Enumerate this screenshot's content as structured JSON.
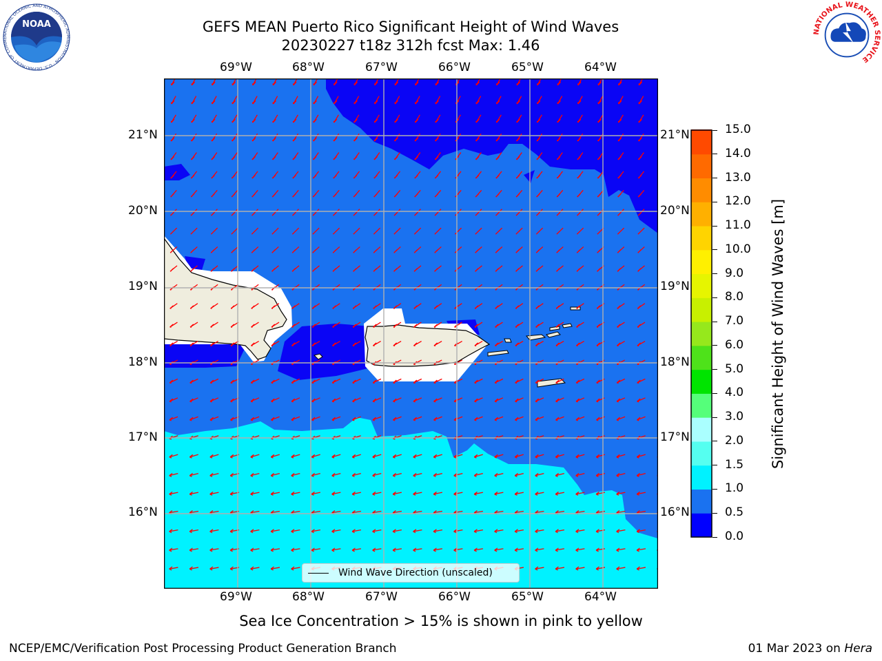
{
  "title": {
    "line1": "GEFS MEAN Puerto Rico Significant Height of Wind Waves",
    "line2": "20230227 t18z 312h fcst   Max: 1.46"
  },
  "map": {
    "lon_ticks": [
      "69°W",
      "68°W",
      "67°W",
      "66°W",
      "65°W",
      "64°W"
    ],
    "lat_ticks": [
      "21°N",
      "20°N",
      "19°N",
      "18°N",
      "17°N",
      "16°N"
    ],
    "legend_label": "Wind Wave Direction (unscaled)",
    "colors": {
      "land": "#efedde",
      "ocean_0_0.5": "#0a05f5",
      "ocean_0.5_1.0": "#1a72f0",
      "ocean_1.0_1.5": "#00f2ff",
      "arrow": "#ff0000"
    }
  },
  "colorbar": {
    "label": "Significant Height of Wind Waves [m]",
    "ticks": [
      "15.0",
      "14.0",
      "13.0",
      "12.0",
      "11.0",
      "10.0",
      "9.0",
      "8.0",
      "7.0",
      "6.0",
      "5.0",
      "4.0",
      "3.0",
      "2.0",
      "1.5",
      "1.0",
      "0.5",
      "0.0"
    ],
    "colors": [
      "#0000ff",
      "#1a72f0",
      "#00f2ff",
      "#55fff0",
      "#aaffff",
      "#55ff7a",
      "#00e400",
      "#4ee21a",
      "#96e81c",
      "#c8f000",
      "#e6f500",
      "#fff000",
      "#ffd400",
      "#ffb000",
      "#ff8c00",
      "#ff6a00",
      "#ff4a00",
      "#ff1e00"
    ]
  },
  "note": "Sea Ice Concentration > 15% is shown in pink to yellow",
  "footer": {
    "left": "NCEP/EMC/Verification Post Processing Product Generation Branch",
    "right_date": "01 Mar 2023 on ",
    "right_host": "Hera"
  },
  "logos": {
    "left": {
      "text": "NOAA",
      "ring": "NATIONAL OCEANIC AND ATMOSPHERIC ADMINISTRATION · U.S. DEPARTMENT OF COMMERCE"
    },
    "right": {
      "ring": "NATIONAL WEATHER SERVICE"
    }
  }
}
